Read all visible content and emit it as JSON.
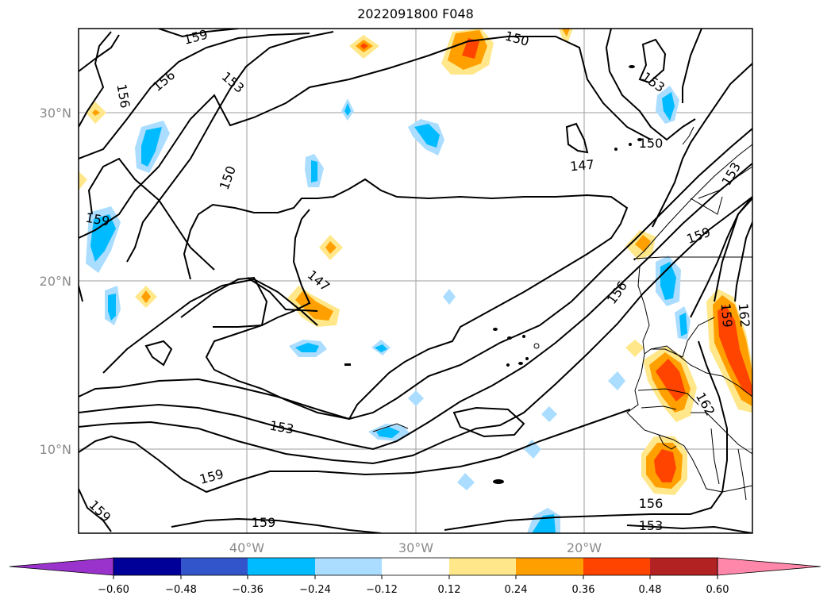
{
  "title": "2022091800 F048",
  "map": {
    "lat_ticks": [
      "30°N",
      "20°N",
      "10°N"
    ],
    "lon_ticks": [
      "40°W",
      "30°W",
      "20°W"
    ],
    "contour_labels": [
      "159",
      "156",
      "153",
      "150",
      "147",
      "150",
      "153",
      "159",
      "156",
      "150",
      "147",
      "153",
      "156",
      "159",
      "162",
      "159",
      "162",
      "153",
      "159",
      "159",
      "159",
      "156",
      "153"
    ],
    "gridline_color": "#9e9e9e"
  },
  "colorbar": {
    "tick_labels": [
      "−0.60",
      "−0.48",
      "−0.36",
      "−0.24",
      "−0.12",
      "0.12",
      "0.24",
      "0.36",
      "0.48",
      "0.60"
    ],
    "colors": [
      "#9933cc",
      "#000099",
      "#3355cc",
      "#00bbff",
      "#aaddff",
      "#ffffff",
      "#ffe78a",
      "#ff9f00",
      "#ff4400",
      "#b22222",
      "#ff88aa"
    ]
  }
}
